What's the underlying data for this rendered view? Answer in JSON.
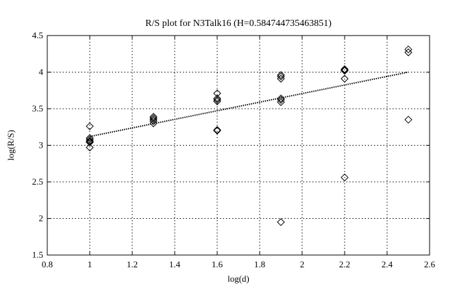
{
  "chart_data": {
    "type": "scatter",
    "title": "R/S plot for N3Talk16 (H=0.584744735463851)",
    "xlabel": "log(d)",
    "ylabel": "log(R/S)",
    "xlim": [
      0.8,
      2.6
    ],
    "ylim": [
      1.5,
      4.5
    ],
    "xticks": [
      "0.8",
      "1",
      "1.2",
      "1.4",
      "1.6",
      "1.8",
      "2",
      "2.2",
      "2.4",
      "2.6"
    ],
    "yticks": [
      "1.5",
      "2",
      "2.5",
      "3",
      "3.5",
      "4",
      "4.5"
    ],
    "grid": true,
    "series": [
      {
        "marker": "diamond",
        "points": [
          [
            1.0,
            3.26
          ],
          [
            1.0,
            3.1
          ],
          [
            1.0,
            3.08
          ],
          [
            1.0,
            3.06
          ],
          [
            1.0,
            3.05
          ],
          [
            1.0,
            3.04
          ],
          [
            1.0,
            2.97
          ],
          [
            1.3,
            3.39
          ],
          [
            1.3,
            3.37
          ],
          [
            1.3,
            3.35
          ],
          [
            1.3,
            3.33
          ],
          [
            1.3,
            3.3
          ],
          [
            1.6,
            3.71
          ],
          [
            1.6,
            3.64
          ],
          [
            1.6,
            3.62
          ],
          [
            1.6,
            3.6
          ],
          [
            1.6,
            3.21
          ],
          [
            1.6,
            3.2
          ],
          [
            1.9,
            3.96
          ],
          [
            1.9,
            3.94
          ],
          [
            1.9,
            3.91
          ],
          [
            1.9,
            3.64
          ],
          [
            1.9,
            3.62
          ],
          [
            1.9,
            3.59
          ],
          [
            1.9,
            1.95
          ],
          [
            2.2,
            4.04
          ],
          [
            2.2,
            4.03
          ],
          [
            2.2,
            4.02
          ],
          [
            2.2,
            3.91
          ],
          [
            2.2,
            2.56
          ],
          [
            2.5,
            4.31
          ],
          [
            2.5,
            4.27
          ],
          [
            2.5,
            3.35
          ]
        ]
      },
      {
        "marker": "dotted-line",
        "points": [
          [
            1.0,
            3.12
          ],
          [
            2.5,
            4.0
          ]
        ]
      }
    ]
  }
}
